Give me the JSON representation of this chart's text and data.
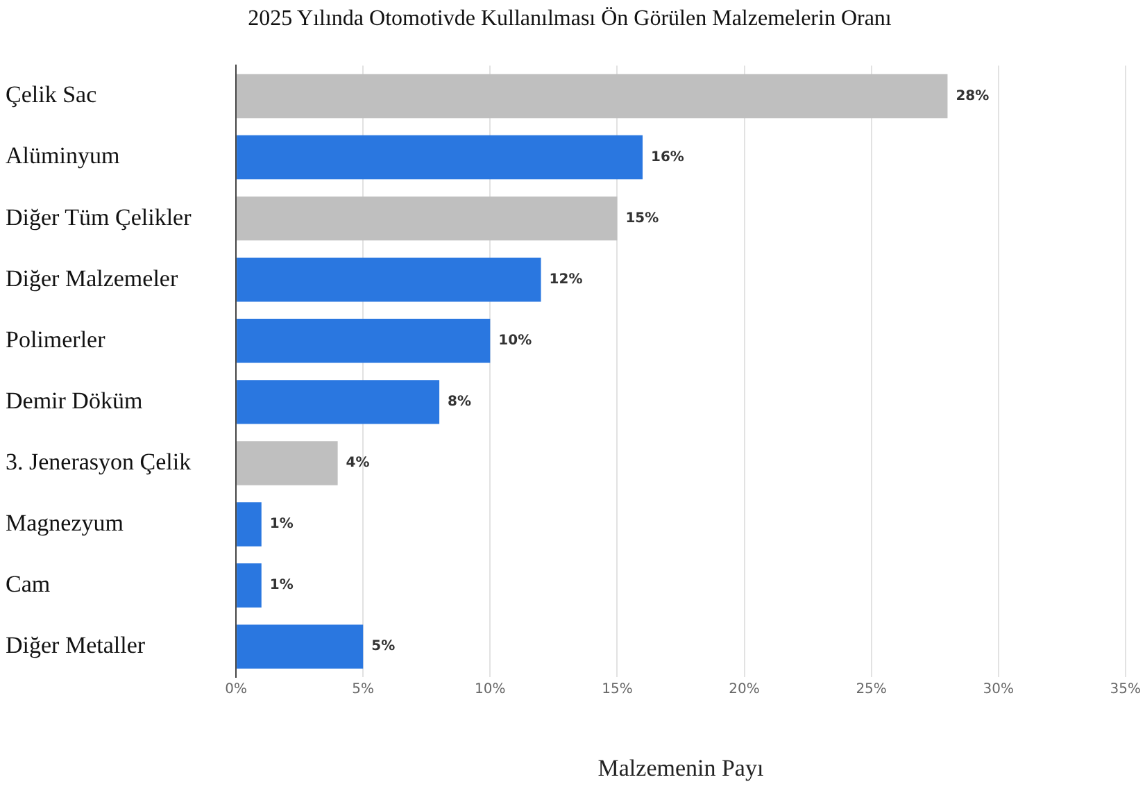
{
  "chart_data": {
    "type": "bar",
    "orientation": "horizontal",
    "title": "2025 Yılında Otomotivde Kullanılması Ön Görülen Malzemelerin Oranı",
    "xlabel": "Malzemenin Payı",
    "categories": [
      "Çelik Sac",
      "Alüminyum",
      "Diğer Tüm Çelikler",
      "Diğer Malzemeler",
      "Polimerler",
      "Demir Döküm",
      "3. Jenerasyon Çelik",
      "Magnezyum",
      "Cam",
      "Diğer Metaller"
    ],
    "values": [
      28,
      16,
      15,
      12,
      10,
      8,
      4,
      1,
      1,
      5
    ],
    "colors": [
      "#bfbfbf",
      "#2a77e0",
      "#bfbfbf",
      "#2a77e0",
      "#2a77e0",
      "#2a77e0",
      "#bfbfbf",
      "#2a77e0",
      "#2a77e0",
      "#2a77e0"
    ],
    "value_labels": [
      "28%",
      "16%",
      "15%",
      "12%",
      "10%",
      "8%",
      "4%",
      "1%",
      "1%",
      "5%"
    ],
    "xlim": [
      0,
      35
    ],
    "xticks": [
      {
        "value": 0,
        "label": "0%"
      },
      {
        "value": 5,
        "label": "5%"
      },
      {
        "value": 10,
        "label": "10%"
      },
      {
        "value": 15,
        "label": "15%"
      },
      {
        "value": 20,
        "label": "20%"
      },
      {
        "value": 25,
        "label": "25%"
      },
      {
        "value": 30,
        "label": "30%"
      },
      {
        "value": 35,
        "label": "35%"
      }
    ],
    "grid": "x",
    "legend": false
  }
}
